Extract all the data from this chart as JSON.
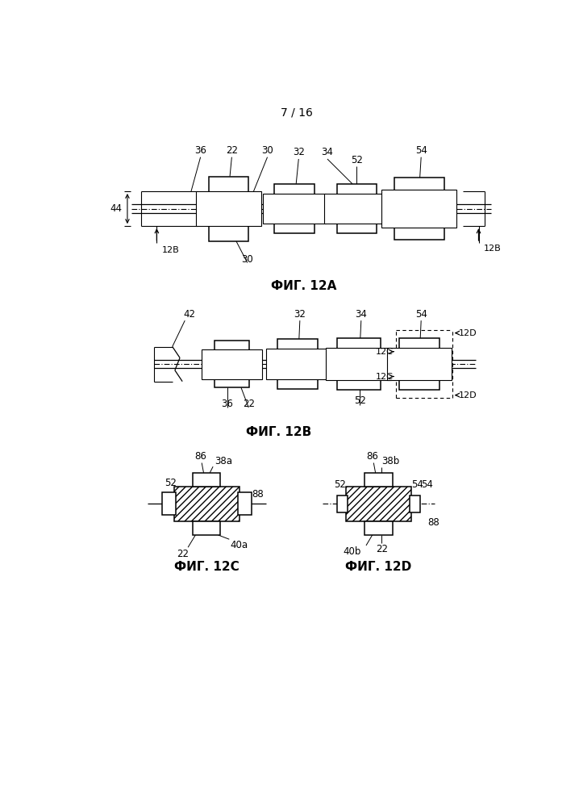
{
  "page_label": "7 / 16",
  "fig12a_label": "ФИГ. 12A",
  "fig12b_label": "ФИГ. 12B",
  "fig12c_label": "ФИГ. 12C",
  "fig12d_label": "ФИГ. 12D",
  "bg_color": "#ffffff"
}
